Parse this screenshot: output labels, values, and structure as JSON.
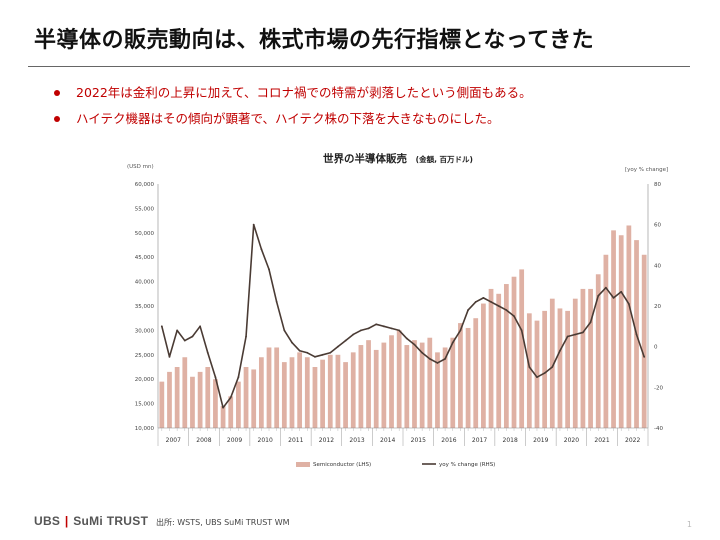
{
  "slide": {
    "title": "半導体の販売動向は、株式市場の先行指標となってきた",
    "bullets": [
      "2022年は金利の上昇に加えて、コロナ禍での特需が剥落したという側面もある。",
      "ハイテク機器はその傾向が顕著で、ハイテク株の下落を大きなものにした。"
    ],
    "source": "出所: WSTS, UBS SuMi TRUST WM",
    "logo_left": "UBS",
    "logo_bar": "|",
    "logo_right": "SuMi TRUST",
    "page_number": "1"
  },
  "colors": {
    "bar": "#dfb1a4",
    "line": "#4a3b34",
    "text_accent": "#c00000"
  },
  "chart_data": {
    "type": "bar+line",
    "title": "世界の半導体販売",
    "title_sub": "(金額, 百万ドル)",
    "left_axis_unit": "(USD mn)",
    "right_axis_unit": "[yoy % change]",
    "ylim_left": [
      10000,
      60000
    ],
    "yticks_left": [
      "10,000",
      "15,000",
      "20,000",
      "25,000",
      "30,000",
      "35,000",
      "40,000",
      "45,000",
      "50,000",
      "55,000",
      "60,000"
    ],
    "ylim_right": [
      -40,
      80
    ],
    "yticks_right": [
      "-40",
      "-20",
      "0",
      "20",
      "40",
      "60",
      "80"
    ],
    "x_start": "2007-01",
    "x_end": "2022-12",
    "year_labels": [
      "2007",
      "2008",
      "2009",
      "2010",
      "2011",
      "2012",
      "2013",
      "2014",
      "2015",
      "2016",
      "2017",
      "2018",
      "2019",
      "2020",
      "2021",
      "2022"
    ],
    "grid": false,
    "legend_position": "bottom",
    "series": [
      {
        "name": "Semiconductor (LHS)",
        "type": "bar",
        "axis": "left",
        "points": [
          [
            "2007-01",
            19500
          ],
          [
            "2007-04",
            21500
          ],
          [
            "2007-07",
            22500
          ],
          [
            "2007-10",
            24500
          ],
          [
            "2008-01",
            20500
          ],
          [
            "2008-04",
            21500
          ],
          [
            "2008-07",
            22500
          ],
          [
            "2008-10",
            20000
          ],
          [
            "2009-01",
            14500
          ],
          [
            "2009-04",
            16500
          ],
          [
            "2009-07",
            19500
          ],
          [
            "2009-10",
            22500
          ],
          [
            "2010-01",
            22000
          ],
          [
            "2010-04",
            24500
          ],
          [
            "2010-07",
            26500
          ],
          [
            "2010-10",
            26500
          ],
          [
            "2011-01",
            23500
          ],
          [
            "2011-04",
            24500
          ],
          [
            "2011-07",
            25500
          ],
          [
            "2011-10",
            24500
          ],
          [
            "2012-01",
            22500
          ],
          [
            "2012-04",
            24000
          ],
          [
            "2012-07",
            25000
          ],
          [
            "2012-10",
            25000
          ],
          [
            "2013-01",
            23500
          ],
          [
            "2013-04",
            25500
          ],
          [
            "2013-07",
            27000
          ],
          [
            "2013-10",
            28000
          ],
          [
            "2014-01",
            26000
          ],
          [
            "2014-04",
            27500
          ],
          [
            "2014-07",
            29000
          ],
          [
            "2014-10",
            30000
          ],
          [
            "2015-01",
            27000
          ],
          [
            "2015-04",
            28000
          ],
          [
            "2015-07",
            27500
          ],
          [
            "2015-10",
            28500
          ],
          [
            "2016-01",
            25500
          ],
          [
            "2016-04",
            26500
          ],
          [
            "2016-07",
            28500
          ],
          [
            "2016-10",
            31500
          ],
          [
            "2017-01",
            30500
          ],
          [
            "2017-04",
            32500
          ],
          [
            "2017-07",
            35500
          ],
          [
            "2017-10",
            38500
          ],
          [
            "2018-01",
            37500
          ],
          [
            "2018-04",
            39500
          ],
          [
            "2018-07",
            41000
          ],
          [
            "2018-10",
            42500
          ],
          [
            "2019-01",
            33500
          ],
          [
            "2019-04",
            32000
          ],
          [
            "2019-07",
            34000
          ],
          [
            "2019-10",
            36500
          ],
          [
            "2020-01",
            34500
          ],
          [
            "2020-04",
            34000
          ],
          [
            "2020-07",
            36500
          ],
          [
            "2020-10",
            38500
          ],
          [
            "2021-01",
            38500
          ],
          [
            "2021-04",
            41500
          ],
          [
            "2021-07",
            45500
          ],
          [
            "2021-10",
            50500
          ],
          [
            "2022-01",
            49500
          ],
          [
            "2022-04",
            51500
          ],
          [
            "2022-07",
            48500
          ],
          [
            "2022-10",
            45500
          ]
        ]
      },
      {
        "name": "yoy % change (RHS)",
        "type": "line",
        "axis": "right",
        "points": [
          [
            "2007-01",
            10
          ],
          [
            "2007-04",
            -5
          ],
          [
            "2007-07",
            8
          ],
          [
            "2007-10",
            3
          ],
          [
            "2008-01",
            5
          ],
          [
            "2008-04",
            10
          ],
          [
            "2008-07",
            -3
          ],
          [
            "2008-10",
            -15
          ],
          [
            "2009-01",
            -30
          ],
          [
            "2009-04",
            -25
          ],
          [
            "2009-07",
            -15
          ],
          [
            "2009-10",
            5
          ],
          [
            "2010-01",
            60
          ],
          [
            "2010-04",
            48
          ],
          [
            "2010-07",
            38
          ],
          [
            "2010-10",
            22
          ],
          [
            "2011-01",
            8
          ],
          [
            "2011-04",
            2
          ],
          [
            "2011-07",
            -2
          ],
          [
            "2011-10",
            -3
          ],
          [
            "2012-01",
            -5
          ],
          [
            "2012-04",
            -4
          ],
          [
            "2012-07",
            -3
          ],
          [
            "2012-10",
            0
          ],
          [
            "2013-01",
            3
          ],
          [
            "2013-04",
            6
          ],
          [
            "2013-07",
            8
          ],
          [
            "2013-10",
            9
          ],
          [
            "2014-01",
            11
          ],
          [
            "2014-04",
            10
          ],
          [
            "2014-07",
            9
          ],
          [
            "2014-10",
            8
          ],
          [
            "2015-01",
            4
          ],
          [
            "2015-04",
            1
          ],
          [
            "2015-07",
            -3
          ],
          [
            "2015-10",
            -6
          ],
          [
            "2016-01",
            -8
          ],
          [
            "2016-04",
            -6
          ],
          [
            "2016-07",
            2
          ],
          [
            "2016-10",
            8
          ],
          [
            "2017-01",
            18
          ],
          [
            "2017-04",
            22
          ],
          [
            "2017-07",
            24
          ],
          [
            "2017-10",
            22
          ],
          [
            "2018-01",
            20
          ],
          [
            "2018-04",
            18
          ],
          [
            "2018-07",
            15
          ],
          [
            "2018-10",
            8
          ],
          [
            "2019-01",
            -10
          ],
          [
            "2019-04",
            -15
          ],
          [
            "2019-07",
            -13
          ],
          [
            "2019-10",
            -10
          ],
          [
            "2020-01",
            -2
          ],
          [
            "2020-04",
            5
          ],
          [
            "2020-07",
            6
          ],
          [
            "2020-10",
            7
          ],
          [
            "2021-01",
            12
          ],
          [
            "2021-04",
            25
          ],
          [
            "2021-07",
            29
          ],
          [
            "2021-10",
            24
          ],
          [
            "2022-01",
            27
          ],
          [
            "2022-04",
            21
          ],
          [
            "2022-07",
            6
          ],
          [
            "2022-10",
            -5
          ]
        ]
      }
    ]
  }
}
